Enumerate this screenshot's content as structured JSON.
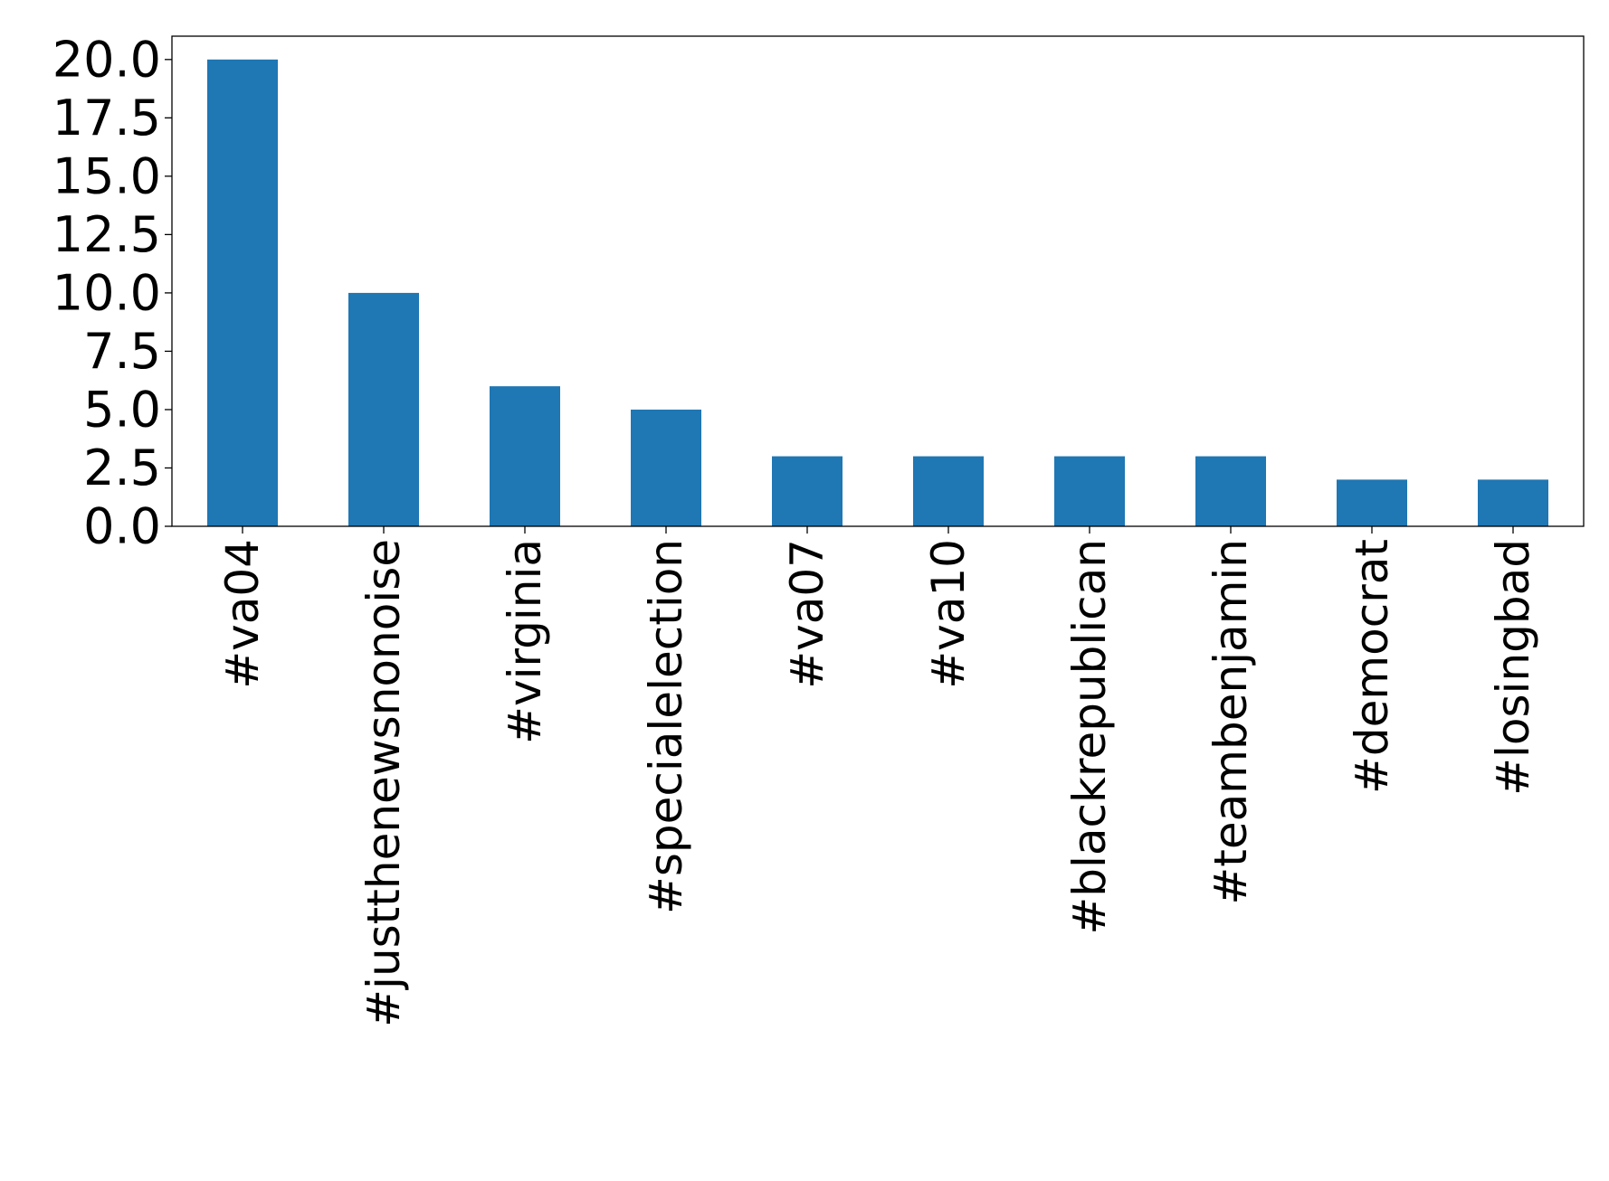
{
  "chart_data": {
    "type": "bar",
    "title": "",
    "xlabel": "",
    "ylabel": "",
    "categories": [
      "#va04",
      "#justthenewsnonoise",
      "#virginia",
      "#specialelection",
      "#va07",
      "#va10",
      "#blackrepublican",
      "#teambenjamin",
      "#democrat",
      "#losingbad"
    ],
    "values": [
      20,
      10,
      6,
      5,
      3,
      3,
      3,
      3,
      2,
      2
    ],
    "ylim": [
      0,
      21
    ],
    "yticks": [
      0,
      2.5,
      5,
      7.5,
      10,
      12.5,
      15,
      17.5,
      20
    ],
    "ytick_labels": [
      "0.0",
      "2.5",
      "5.0",
      "7.5",
      "10.0",
      "12.5",
      "15.0",
      "17.5",
      "20.0"
    ],
    "grid": false,
    "legend": "none",
    "bar_color": "#1f77b4"
  }
}
